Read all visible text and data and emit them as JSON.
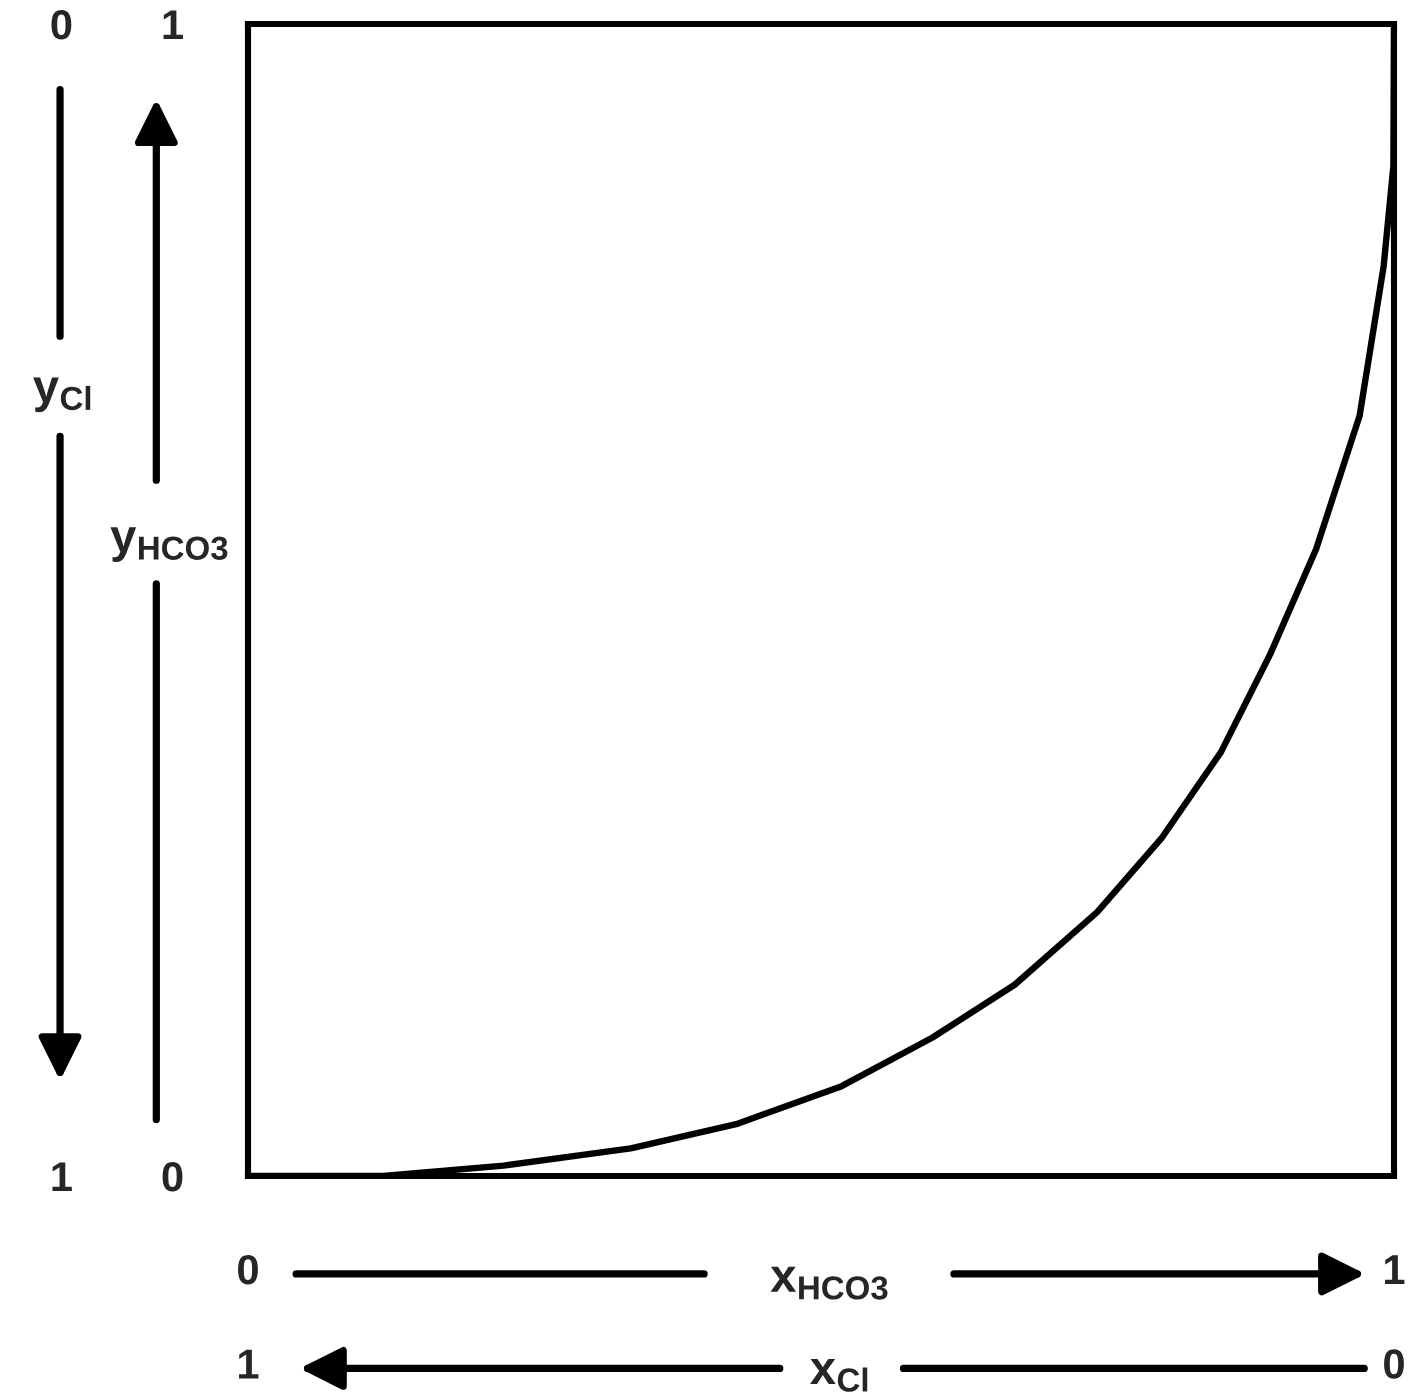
{
  "chart_data": {
    "type": "line",
    "xlabel": "x$_{HCO3}$",
    "ylabel": "y$_{HCO3}$",
    "x2label": "x$_{Cl}$",
    "y2label": "y$_{Cl}$",
    "x": [
      0,
      0.118,
      0.223,
      0.334,
      0.426,
      0.518,
      0.597,
      0.669,
      0.741,
      0.797,
      0.849,
      0.892,
      0.932,
      0.97,
      0.991,
      0.9995,
      1
    ],
    "series": [
      {
        "color": "#000000",
        "values": [
          0,
          0,
          0.009,
          0.024,
          0.045,
          0.078,
          0.12,
          0.166,
          0.229,
          0.293,
          0.368,
          0.453,
          0.544,
          0.66,
          0.79,
          0.877,
          1
        ]
      }
    ],
    "xlim": [
      0,
      1
    ],
    "ylim": [
      0,
      1
    ],
    "xticks": [
      0,
      1
    ],
    "yticks": [
      0,
      1
    ],
    "x2lim": [
      1,
      0
    ],
    "x2ticks": [
      0,
      1
    ],
    "y2lim": [
      1,
      0
    ],
    "y2ticks": [
      0,
      1
    ]
  }
}
